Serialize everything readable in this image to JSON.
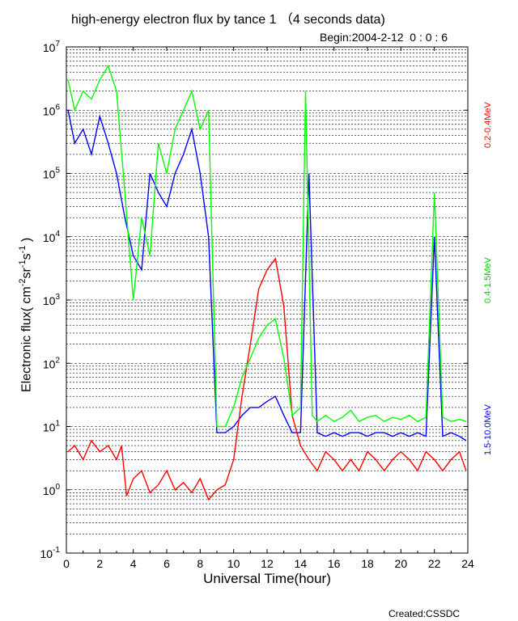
{
  "chart_data": {
    "type": "line",
    "title": "high-energy electron flux by tance 1 （4 seconds data)",
    "begin_label": "Begin:2004-2-12  0 : 0 : 6",
    "xlabel": "Universal Time(hour)",
    "ylabel_main": "Electronic flux( cm",
    "ylabel_parts": [
      {
        "text": "Electronic flux( cm",
        "sup": false
      },
      {
        "text": "-2",
        "sup": true
      },
      {
        "text": "sr",
        "sup": false
      },
      {
        "text": "-1",
        "sup": true
      },
      {
        "text": "s",
        "sup": false
      },
      {
        "text": "-1",
        "sup": true
      },
      {
        "text": " )",
        "sup": false
      }
    ],
    "y_scale": "log",
    "ylim": [
      0.1,
      10000000
    ],
    "xlim": [
      0,
      24
    ],
    "x_ticks": [
      "0",
      "2",
      "4",
      "6",
      "8",
      "10",
      "12",
      "14",
      "16",
      "18",
      "20",
      "22",
      "24"
    ],
    "y_ticks": [
      {
        "base": "10",
        "exp": "-1"
      },
      {
        "base": "10",
        "exp": "0"
      },
      {
        "base": "10",
        "exp": "1"
      },
      {
        "base": "10",
        "exp": "2"
      },
      {
        "base": "10",
        "exp": "3"
      },
      {
        "base": "10",
        "exp": "4"
      },
      {
        "base": "10",
        "exp": "5"
      },
      {
        "base": "10",
        "exp": "6"
      },
      {
        "base": "10",
        "exp": "7"
      }
    ],
    "grid": "dashed, major and minor y gridlines",
    "series": [
      {
        "name": "0.2-0.4MeV",
        "color": "#ff0000",
        "x": [
          0.1,
          0.5,
          1.0,
          1.5,
          2.0,
          2.5,
          3.0,
          3.3,
          3.6,
          4.0,
          4.5,
          5.0,
          5.5,
          6.0,
          6.5,
          7.0,
          7.5,
          8.0,
          8.5,
          9.0,
          9.5,
          10.0,
          10.5,
          11.0,
          11.5,
          12.0,
          12.5,
          13.0,
          13.5,
          14.0,
          14.5,
          15.0,
          15.5,
          16.0,
          16.5,
          17.0,
          17.5,
          18.0,
          18.5,
          19.0,
          19.5,
          20.0,
          20.5,
          21.0,
          21.5,
          22.0,
          22.5,
          23.0,
          23.5,
          23.9
        ],
        "y": [
          4,
          5,
          3,
          6,
          4,
          5,
          3,
          5,
          0.8,
          1.5,
          2,
          0.9,
          1.2,
          2,
          1.0,
          1.3,
          0.9,
          1.5,
          0.7,
          1,
          1.2,
          3,
          30,
          200,
          1500,
          3000,
          4500,
          800,
          15,
          5,
          3,
          2,
          4,
          3,
          2,
          3,
          2,
          4,
          3,
          2,
          3,
          4,
          3,
          2,
          4,
          3,
          2,
          3,
          4,
          2
        ]
      },
      {
        "name": "0.4-1.5MeV",
        "color": "#00ff00",
        "x": [
          0.1,
          0.5,
          1.0,
          1.5,
          2.0,
          2.5,
          3.0,
          3.5,
          4.0,
          4.5,
          5.0,
          5.5,
          6.0,
          6.5,
          7.0,
          7.5,
          8.0,
          8.5,
          9.0,
          9.5,
          10.0,
          10.5,
          11.0,
          11.5,
          12.0,
          12.5,
          13.0,
          13.5,
          14.0,
          14.3,
          14.7,
          15.0,
          15.5,
          16.0,
          16.5,
          17.0,
          17.5,
          18.0,
          18.5,
          19.0,
          19.5,
          20.0,
          20.5,
          21.0,
          21.5,
          22.0,
          22.5,
          23.0,
          23.5,
          23.9
        ],
        "y": [
          3000000,
          1000000,
          2000000,
          1500000,
          3000000,
          5000000,
          2000000,
          50000,
          1000,
          20000,
          5000,
          300000,
          100000,
          500000,
          1000000,
          2000000,
          500000,
          1000000,
          10,
          10,
          20,
          60,
          120,
          250,
          400,
          500,
          120,
          15,
          20,
          2000000,
          15,
          12,
          15,
          12,
          14,
          18,
          12,
          14,
          15,
          12,
          14,
          13,
          15,
          12,
          14,
          50000,
          14,
          12,
          13,
          12
        ]
      },
      {
        "name": "1.5-10.0MeV",
        "color": "#0000ff",
        "x": [
          0.1,
          0.5,
          1.0,
          1.5,
          2.0,
          2.5,
          3.0,
          3.5,
          4.0,
          4.5,
          5.0,
          5.5,
          6.0,
          6.5,
          7.0,
          7.5,
          8.0,
          8.5,
          9.0,
          9.5,
          10.0,
          10.5,
          11.0,
          11.5,
          12.0,
          12.5,
          13.0,
          13.5,
          14.0,
          14.5,
          15.0,
          15.5,
          16.0,
          16.5,
          17.0,
          17.5,
          18.0,
          18.5,
          19.0,
          19.5,
          20.0,
          20.5,
          21.0,
          21.5,
          22.0,
          22.5,
          23.0,
          23.5,
          23.9
        ],
        "y": [
          1000000,
          300000,
          500000,
          200000,
          800000,
          300000,
          100000,
          20000,
          5000,
          3000,
          100000,
          50000,
          30000,
          100000,
          200000,
          500000,
          100000,
          10000,
          8,
          8,
          10,
          15,
          20,
          20,
          25,
          30,
          15,
          8,
          8,
          100000,
          8,
          7,
          8,
          7,
          8,
          8,
          7,
          8,
          8,
          7,
          8,
          7,
          8,
          7,
          10000,
          7,
          8,
          7,
          6
        ]
      }
    ],
    "legend_placement": "right side, rotated labels"
  },
  "footer": {
    "created": "Created:CSSDC"
  }
}
